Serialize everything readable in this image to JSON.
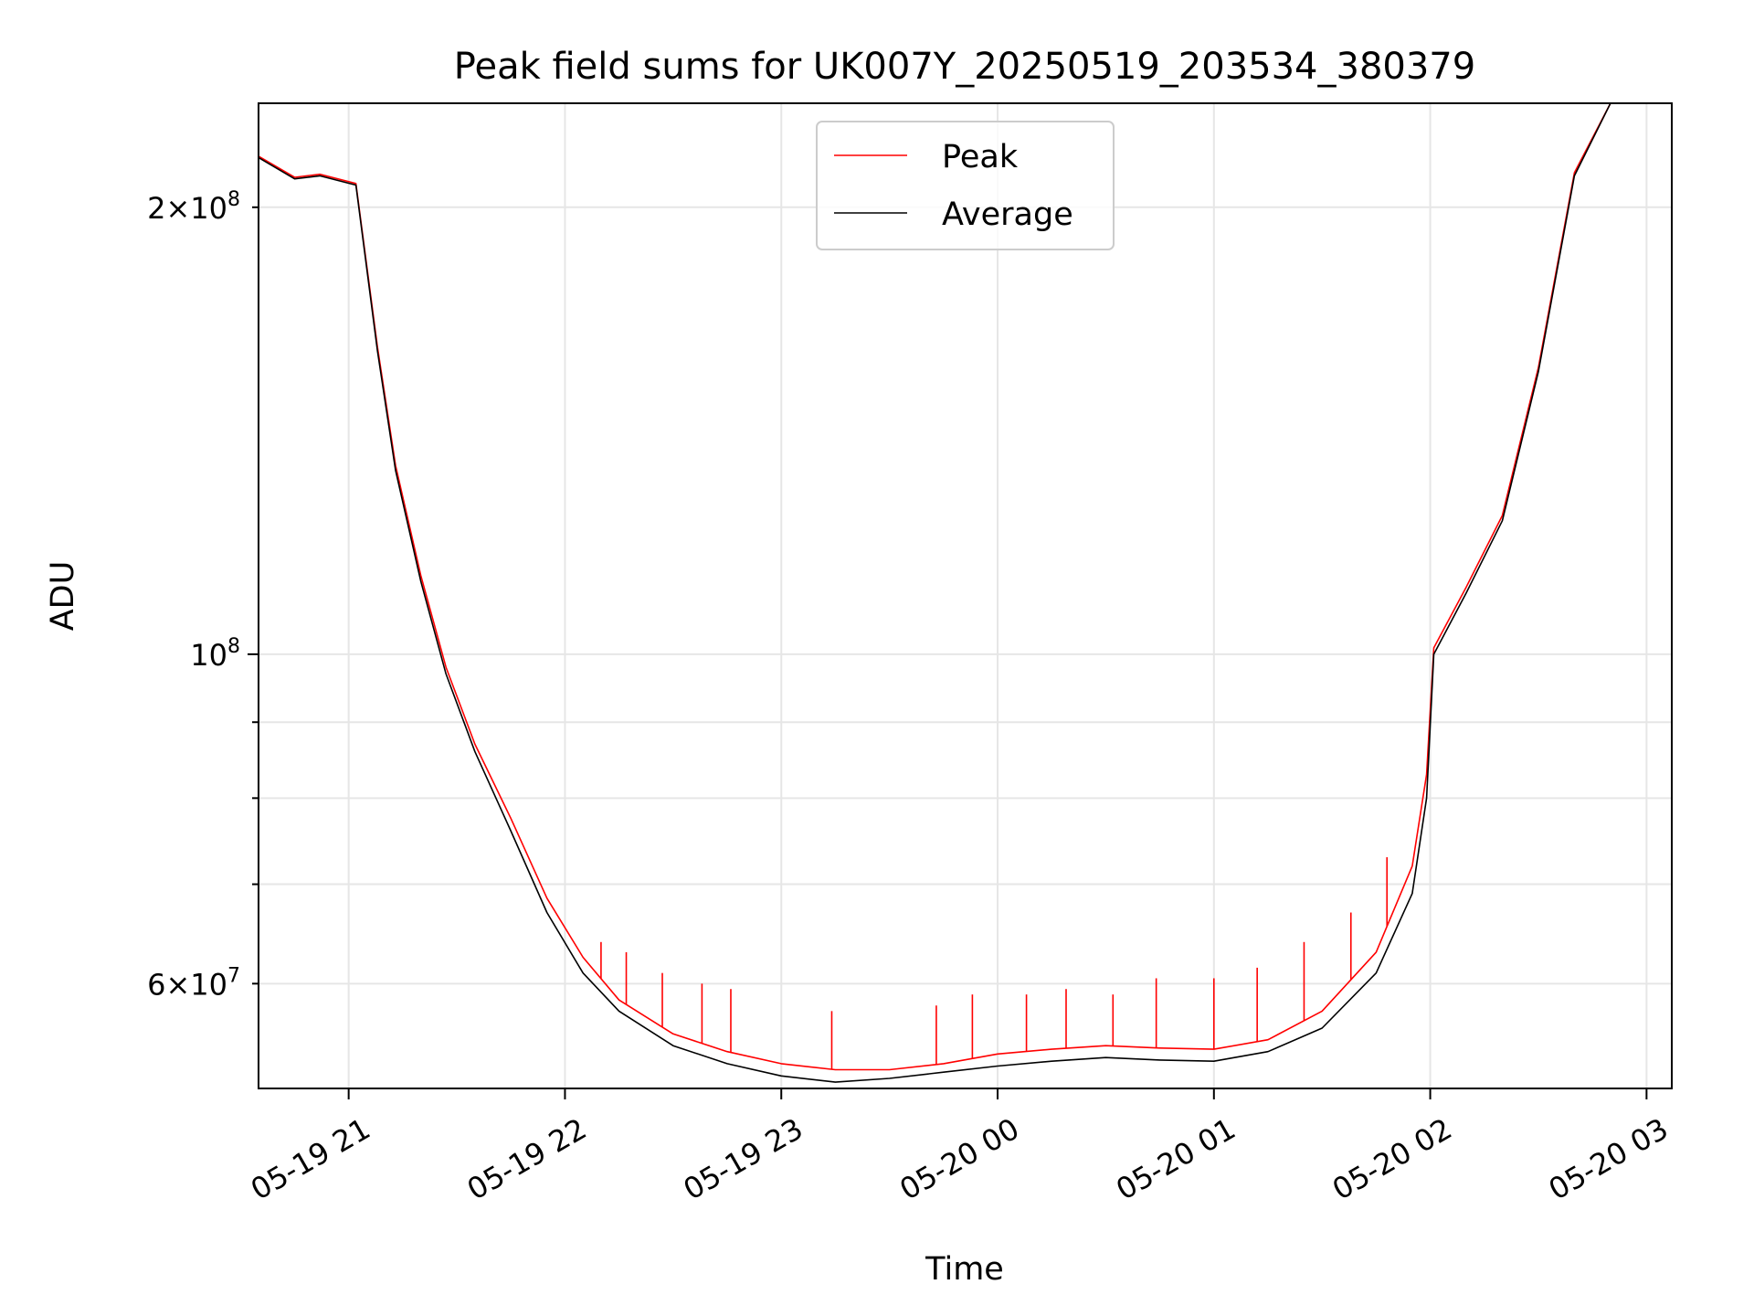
{
  "chart_data": {
    "type": "line",
    "title": "Peak field sums for UK007Y_20250519_203534_380379",
    "xlabel": "Time",
    "ylabel": "ADU",
    "yscale": "log",
    "grid": true,
    "legend_position": "top-center",
    "xlim": [
      "2025-05-19 20:35",
      "2025-05-20 03:07"
    ],
    "ylim": [
      51000000,
      235000000
    ],
    "x_ticks": [
      {
        "at": "2025-05-19 21:00",
        "label": "05-19 21"
      },
      {
        "at": "2025-05-19 22:00",
        "label": "05-19 22"
      },
      {
        "at": "2025-05-19 23:00",
        "label": "05-19 23"
      },
      {
        "at": "2025-05-20 00:00",
        "label": "05-20 00"
      },
      {
        "at": "2025-05-20 01:00",
        "label": "05-20 01"
      },
      {
        "at": "2025-05-20 02:00",
        "label": "05-20 02"
      },
      {
        "at": "2025-05-20 03:00",
        "label": "05-20 03"
      }
    ],
    "y_ticks_major": [
      {
        "value": 100000000,
        "base": "10",
        "exp": "8"
      }
    ],
    "y_ticks_minor_labeled": [
      {
        "value": 60000000,
        "mant": "6",
        "base": "10",
        "exp": "7"
      },
      {
        "value": 200000000,
        "mant": "2",
        "base": "10",
        "exp": "8"
      }
    ],
    "y_ticks_minor_unlabeled": [
      70000000,
      80000000,
      90000000
    ],
    "series": [
      {
        "name": "Peak",
        "color": "#ff0000"
      },
      {
        "name": "Average",
        "color": "#000000"
      }
    ],
    "x": [
      "2025-05-19 20:35",
      "2025-05-19 20:45",
      "2025-05-19 20:52",
      "2025-05-19 21:02",
      "2025-05-19 21:08",
      "2025-05-19 21:13",
      "2025-05-19 21:20",
      "2025-05-19 21:27",
      "2025-05-19 21:35",
      "2025-05-19 21:45",
      "2025-05-19 21:55",
      "2025-05-19 22:05",
      "2025-05-19 22:15",
      "2025-05-19 22:30",
      "2025-05-19 22:45",
      "2025-05-19 23:00",
      "2025-05-19 23:15",
      "2025-05-19 23:30",
      "2025-05-19 23:45",
      "2025-05-20 00:00",
      "2025-05-20 00:15",
      "2025-05-20 00:30",
      "2025-05-20 00:45",
      "2025-05-20 01:00",
      "2025-05-20 01:15",
      "2025-05-20 01:30",
      "2025-05-20 01:45",
      "2025-05-20 01:55",
      "2025-05-20 01:59",
      "2025-05-20 02:01",
      "2025-05-20 02:10",
      "2025-05-20 02:20",
      "2025-05-20 02:30",
      "2025-05-20 02:40",
      "2025-05-20 02:50"
    ],
    "average_values": [
      216000000,
      209000000,
      210000000,
      207000000,
      160000000,
      133000000,
      112000000,
      97000000,
      86000000,
      76000000,
      67000000,
      61000000,
      57500000,
      54500000,
      53000000,
      52000000,
      51500000,
      51800000,
      52300000,
      52800000,
      53200000,
      53500000,
      53300000,
      53200000,
      54000000,
      56000000,
      61000000,
      69000000,
      80000000,
      100000000,
      110000000,
      123000000,
      155000000,
      210000000,
      235000000
    ],
    "peak_values": [
      216500000,
      209500000,
      210500000,
      207500000,
      161000000,
      134000000,
      113000000,
      98000000,
      87000000,
      77500000,
      68500000,
      62500000,
      58500000,
      55500000,
      54000000,
      53000000,
      52500000,
      52500000,
      53000000,
      53800000,
      54200000,
      54500000,
      54300000,
      54200000,
      55000000,
      57500000,
      63000000,
      72000000,
      83000000,
      101000000,
      111000000,
      124000000,
      156000000,
      211000000,
      235000000
    ],
    "peak_spikes": [
      {
        "x": "2025-05-19 22:10",
        "value": 64000000
      },
      {
        "x": "2025-05-19 22:17",
        "value": 63000000
      },
      {
        "x": "2025-05-19 22:27",
        "value": 61000000
      },
      {
        "x": "2025-05-19 22:38",
        "value": 60000000
      },
      {
        "x": "2025-05-19 22:46",
        "value": 59500000
      },
      {
        "x": "2025-05-19 23:14",
        "value": 57500000
      },
      {
        "x": "2025-05-19 23:43",
        "value": 58000000
      },
      {
        "x": "2025-05-19 23:53",
        "value": 59000000
      },
      {
        "x": "2025-05-20 00:08",
        "value": 59000000
      },
      {
        "x": "2025-05-20 00:19",
        "value": 59500000
      },
      {
        "x": "2025-05-20 00:32",
        "value": 59000000
      },
      {
        "x": "2025-05-20 00:44",
        "value": 60500000
      },
      {
        "x": "2025-05-20 01:00",
        "value": 60500000
      },
      {
        "x": "2025-05-20 01:12",
        "value": 61500000
      },
      {
        "x": "2025-05-20 01:25",
        "value": 64000000
      },
      {
        "x": "2025-05-20 01:38",
        "value": 67000000
      },
      {
        "x": "2025-05-20 01:48",
        "value": 73000000
      }
    ]
  }
}
